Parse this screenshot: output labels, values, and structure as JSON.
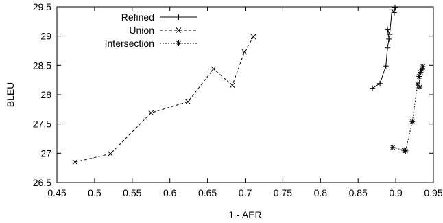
{
  "chart_data": {
    "type": "line",
    "xlabel": "1 - AER",
    "ylabel": "BLEU",
    "xlim": [
      0.45,
      0.95
    ],
    "ylim": [
      26.5,
      29.5
    ],
    "xticks": [
      "0.45",
      "0.5",
      "0.55",
      "0.6",
      "0.65",
      "0.7",
      "0.75",
      "0.8",
      "0.85",
      "0.9",
      "0.95"
    ],
    "yticks": [
      "26.5",
      "27",
      "27.5",
      "28",
      "28.5",
      "29",
      "29.5"
    ],
    "grid": false,
    "legend_position": "top-left",
    "series": [
      {
        "name": "Refined",
        "line_style": "solid",
        "marker": "plus",
        "points": [
          {
            "x": 0.869,
            "y": 28.11
          },
          {
            "x": 0.879,
            "y": 28.19
          },
          {
            "x": 0.887,
            "y": 28.49
          },
          {
            "x": 0.889,
            "y": 28.8
          },
          {
            "x": 0.891,
            "y": 28.95
          },
          {
            "x": 0.889,
            "y": 29.12
          },
          {
            "x": 0.892,
            "y": 29.03
          },
          {
            "x": 0.895,
            "y": 29.45
          },
          {
            "x": 0.898,
            "y": 29.4
          },
          {
            "x": 0.899,
            "y": 29.49
          }
        ]
      },
      {
        "name": "Union",
        "line_style": "dashed",
        "marker": "x",
        "points": [
          {
            "x": 0.474,
            "y": 26.85
          },
          {
            "x": 0.521,
            "y": 26.99
          },
          {
            "x": 0.575,
            "y": 27.69
          },
          {
            "x": 0.624,
            "y": 27.88
          },
          {
            "x": 0.658,
            "y": 28.44
          },
          {
            "x": 0.683,
            "y": 28.16
          },
          {
            "x": 0.699,
            "y": 28.73
          },
          {
            "x": 0.711,
            "y": 28.99
          }
        ]
      },
      {
        "name": "Intersection",
        "line_style": "dotted",
        "marker": "star",
        "points": [
          {
            "x": 0.896,
            "y": 27.1
          },
          {
            "x": 0.911,
            "y": 27.05
          },
          {
            "x": 0.913,
            "y": 27.04
          },
          {
            "x": 0.922,
            "y": 27.54
          },
          {
            "x": 0.929,
            "y": 28.18
          },
          {
            "x": 0.932,
            "y": 28.13
          },
          {
            "x": 0.931,
            "y": 28.31
          },
          {
            "x": 0.933,
            "y": 28.38
          },
          {
            "x": 0.935,
            "y": 28.43
          },
          {
            "x": 0.936,
            "y": 28.48
          }
        ]
      }
    ]
  }
}
